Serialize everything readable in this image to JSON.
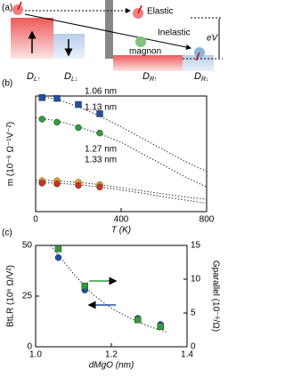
{
  "panel_a": {
    "label": "(a)",
    "elastic": "Elastic",
    "inelastic": "Inelastic",
    "magnon": "magnon",
    "ev": "eV",
    "dos_labels": [
      {
        "main": "D",
        "sub": "L↑"
      },
      {
        "main": "D",
        "sub": "L↓"
      },
      {
        "main": "D",
        "sub": "R↑"
      },
      {
        "main": "D",
        "sub": "R↓"
      }
    ]
  },
  "chart_data": [
    {
      "type": "scatter",
      "label": "(b)",
      "xlabel": "T (K)",
      "ylabel": "m (10⁻⁶ Ω⁻¹V⁻²)",
      "xlim": [
        0,
        800
      ],
      "xticks": [
        0,
        400,
        800
      ],
      "ylim": [
        0,
        150
      ],
      "x": [
        30,
        100,
        200,
        300
      ],
      "fit_x": [
        0,
        100,
        200,
        300,
        400,
        500,
        600,
        700,
        800
      ],
      "series": [
        {
          "name": "1.06 nm",
          "color": "#1f4fa8",
          "marker": "square",
          "values": [
            148,
            147,
            139,
            127
          ],
          "fit": [
            150,
            146,
            136,
            124,
            110,
            95,
            80,
            65,
            52
          ]
        },
        {
          "name": "1.13 nm",
          "color": "#2e9e3a",
          "marker": "circle",
          "values": [
            120,
            116,
            109,
            102
          ],
          "fit": [
            122,
            118,
            110,
            101,
            90,
            75,
            60,
            45,
            32
          ]
        },
        {
          "name": "1.27 nm",
          "color": "#f0a020",
          "marker": "circle",
          "values": [
            40,
            40,
            38,
            35
          ],
          "fit": [
            41,
            40,
            38,
            35,
            31,
            27,
            23,
            19,
            16
          ]
        },
        {
          "name": "1.33 nm",
          "color": "#d03020",
          "marker": "circle",
          "values": [
            37,
            36,
            34,
            32
          ],
          "fit": [
            38,
            37,
            35,
            32,
            28,
            24,
            19,
            15,
            11
          ]
        }
      ]
    },
    {
      "type": "scatter",
      "label": "(c)",
      "xlabel": "dMgO (nm)",
      "ylabel": "BtLR (10⁶ Ω/V²)",
      "y2label": "Gparallel (10⁻⁶/Ω)",
      "xlim": [
        1.0,
        1.4
      ],
      "xticks": [
        {
          "value": 1.0,
          "label": "1.0"
        },
        {
          "value": 1.2,
          "label": "1.2"
        },
        {
          "value": 1.4,
          "label": "1.4"
        }
      ],
      "ylim": [
        0,
        50
      ],
      "yticks": [
        0,
        25,
        50
      ],
      "y2lim": [
        0,
        15
      ],
      "y2ticks": [
        0,
        5,
        10,
        15
      ],
      "x": [
        1.06,
        1.13,
        1.27,
        1.33
      ],
      "fit_x": [
        1.04,
        1.1,
        1.15,
        1.2,
        1.25,
        1.3,
        1.35
      ],
      "fit": [
        50,
        36,
        26,
        19,
        14,
        10,
        7
      ],
      "series": [
        {
          "color": "#1f4fa8",
          "marker": "circle",
          "axis": "y",
          "values": [
            44,
            28,
            14,
            11
          ]
        },
        {
          "color": "#2e9e3a",
          "marker": "square",
          "axis": "y2",
          "values": [
            14.5,
            9,
            4,
            3
          ]
        }
      ]
    }
  ]
}
